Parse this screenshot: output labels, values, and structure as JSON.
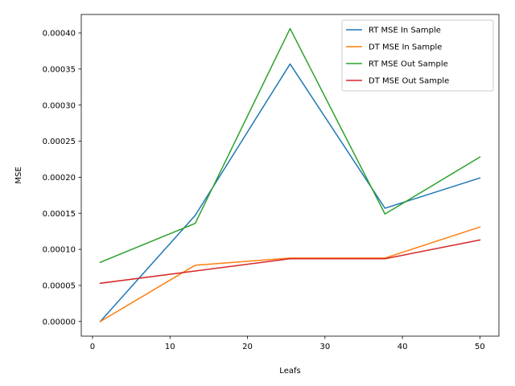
{
  "chart_data": {
    "type": "line",
    "title": "",
    "xlabel": "Leafs",
    "ylabel": "MSE",
    "xlim": [
      -1.45,
      52.45
    ],
    "ylim": [
      -2.03e-05,
      0.0004256
    ],
    "x_ticks": [
      0,
      10,
      20,
      30,
      40,
      50
    ],
    "y_ticks": [
      0,
      5e-05,
      0.0001,
      0.00015,
      0.0002,
      0.00025,
      0.0003,
      0.00035,
      0.0004
    ],
    "x_tick_labels": [
      "0",
      "10",
      "20",
      "30",
      "40",
      "50"
    ],
    "y_tick_labels": [
      "0.00000",
      "0.00005",
      "0.00010",
      "0.00015",
      "0.00020",
      "0.00025",
      "0.00030",
      "0.00035",
      "0.00040"
    ],
    "x": [
      1,
      13.25,
      25.5,
      37.75,
      50
    ],
    "grid": false,
    "legend_position": "top-right",
    "series": [
      {
        "name": "RT MSE In Sample",
        "color": "#1f77b4",
        "values": [
          0.0,
          0.000147,
          0.000357,
          0.000157,
          0.000199
        ]
      },
      {
        "name": "DT MSE In Sample",
        "color": "#ff7f0e",
        "values": [
          0.0,
          7.8e-05,
          8.8e-05,
          8.8e-05,
          0.000131
        ]
      },
      {
        "name": "RT MSE Out Sample",
        "color": "#2ca02c",
        "values": [
          8.2e-05,
          0.000136,
          0.000406,
          0.000149,
          0.000228
        ]
      },
      {
        "name": "DT MSE Out Sample",
        "color": "#d62728",
        "values": [
          5.3e-05,
          7e-05,
          8.7e-05,
          8.7e-05,
          0.000113
        ]
      }
    ]
  }
}
